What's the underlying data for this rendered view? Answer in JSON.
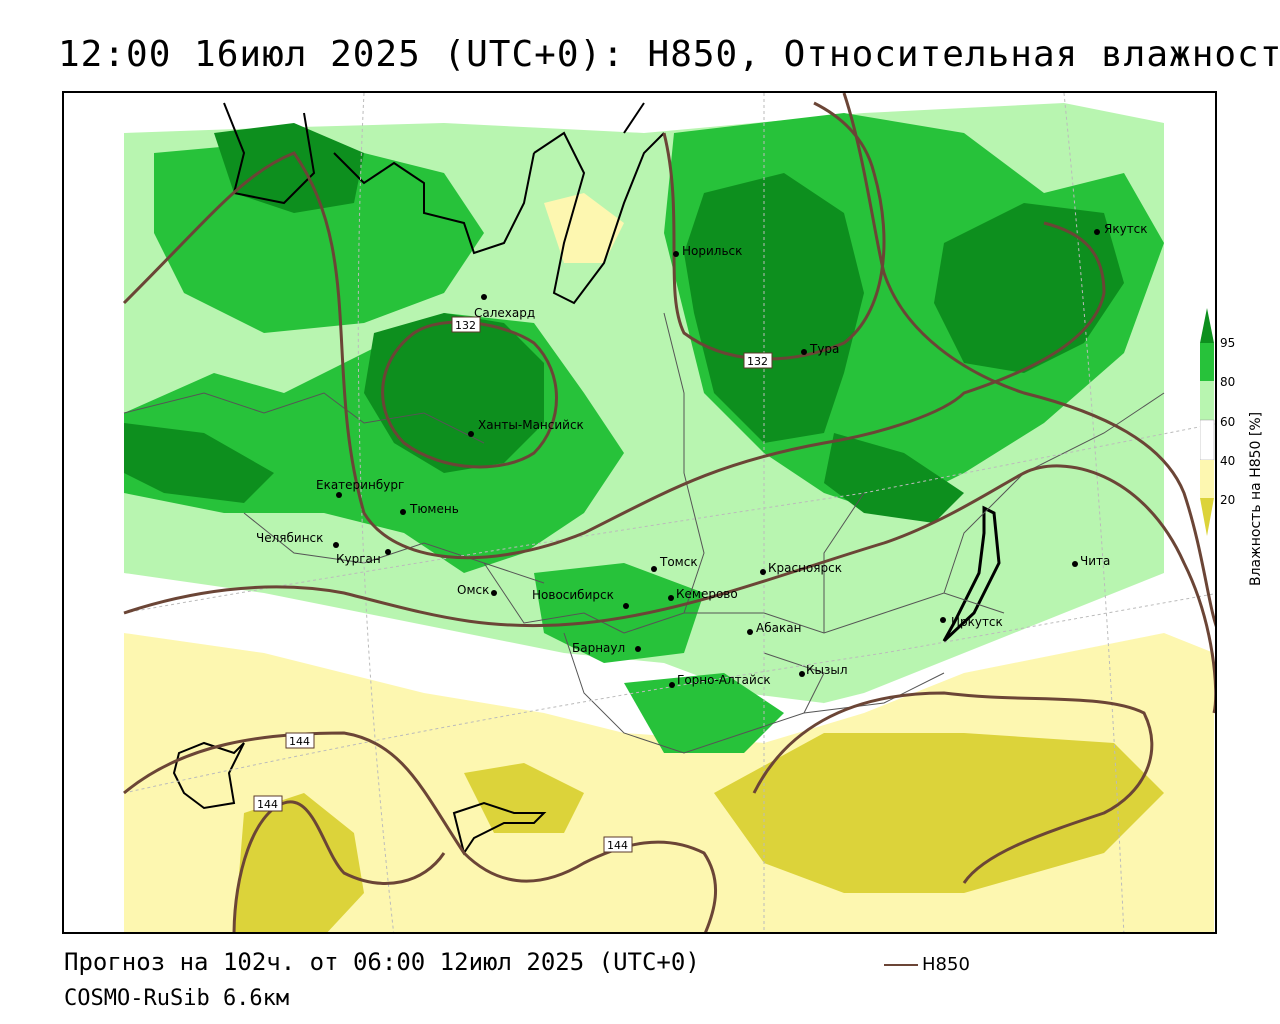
{
  "title": "12:00 16июл 2025 (UTC+0): H850, Относительная влажность",
  "colors": {
    "humidity_95": "#0d8f1e",
    "humidity_80": "#27c23a",
    "humidity_60": "#b8f5b0",
    "humidity_40_60": "#ffffff",
    "humidity_20": "#fdf7b0",
    "humidity_below_20": "#dcd33a",
    "contour": "#6b4536"
  },
  "legend": {
    "title": "Влажность на H850 [%]",
    "ticks": [
      "95",
      "80",
      "60",
      "40",
      "20"
    ]
  },
  "cities": [
    {
      "name": "Салехард"
    },
    {
      "name": "Норильск"
    },
    {
      "name": "Якутск"
    },
    {
      "name": "Тура"
    },
    {
      "name": "Ханты-Мансийск"
    },
    {
      "name": "Екатеринбург"
    },
    {
      "name": "Тюмень"
    },
    {
      "name": "Челябинск"
    },
    {
      "name": "Курган"
    },
    {
      "name": "Омск"
    },
    {
      "name": "Новосибирск"
    },
    {
      "name": "Томск"
    },
    {
      "name": "Кемерово"
    },
    {
      "name": "Красноярск"
    },
    {
      "name": "Абакан"
    },
    {
      "name": "Барнаул"
    },
    {
      "name": "Горно-Алтайск"
    },
    {
      "name": "Кызыл"
    },
    {
      "name": "Иркутск"
    },
    {
      "name": "Чита"
    }
  ],
  "contour_labels": [
    "132",
    "132",
    "144",
    "144",
    "144"
  ],
  "footer": {
    "forecast": "Прогноз на 102ч. от 06:00 12июл 2025 (UTC+0)",
    "model": "COSMO-RuSib 6.6км",
    "line_legend": "H850"
  }
}
